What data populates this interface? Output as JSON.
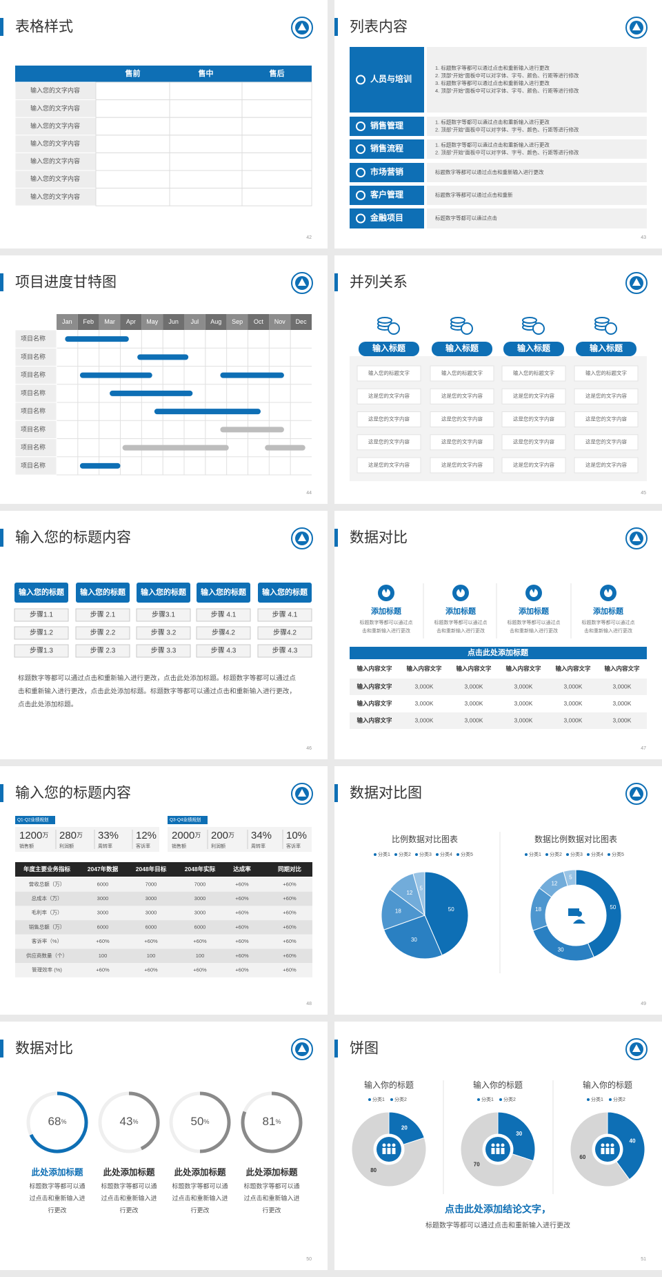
{
  "slides": [
    {
      "title": "表格样式",
      "page": "42",
      "table": {
        "columns": [
          "售前",
          "售中",
          "售后"
        ],
        "rows": [
          "输入您的文字内容",
          "输入您的文字内容",
          "输入您的文字内容",
          "输入您的文字内容",
          "输入您的文字内容",
          "输入您的文字内容",
          "输入您的文字内容"
        ]
      }
    },
    {
      "title": "列表内容",
      "page": "43",
      "list": [
        {
          "label": "人员与培训",
          "lines": [
            "1.  标题数字等都可以通过点击和重新输入进行更改",
            "2.  顶部“开始”面板中可以对字体、字号、颜色、行距等进行修改",
            "3.  标题数字等都可以通过点击和重新输入进行更改",
            "4.  顶部“开始”面板中可以对字体、字号、颜色、行距等进行修改"
          ]
        },
        {
          "label": "销售管理",
          "lines": [
            "1.  标题数字等都可以通过点击和重新输入进行更改",
            "2.  顶部“开始”面板中可以对字体、字号、颜色、行距等进行修改"
          ]
        },
        {
          "label": "销售流程",
          "lines": [
            "1.  标题数字等都可以通过点击和重新输入进行更改",
            "2.  顶部“开始”面板中可以对字体、字号、颜色、行距等进行修改"
          ]
        },
        {
          "label": "市场营销",
          "lines": [
            "标题数字等都可以通过点击和重新输入进行更改"
          ]
        },
        {
          "label": "客户管理",
          "lines": [
            "标题数字等都可以通过点击和重新"
          ]
        },
        {
          "label": "金融项目",
          "lines": [
            "标题数字等都可以通过点击"
          ]
        }
      ]
    },
    {
      "title": "项目进度甘特图",
      "page": "44",
      "gantt": {
        "months": [
          "Jan",
          "Feb",
          "Mar",
          "Apr",
          "May",
          "Jun",
          "Jul",
          "Aug",
          "Sep",
          "Oct",
          "Nov",
          "Dec"
        ],
        "rows": [
          {
            "label": "项目名称",
            "bars": [
              {
                "start": 0.4,
                "end": 3.4,
                "color": "#0e6fb5"
              }
            ]
          },
          {
            "label": "项目名称",
            "bars": [
              {
                "start": 3.8,
                "end": 6.2,
                "color": "#0e6fb5"
              }
            ]
          },
          {
            "label": "项目名称",
            "bars": [
              {
                "start": 1.1,
                "end": 4.5,
                "color": "#0e6fb5"
              },
              {
                "start": 7.7,
                "end": 10.7,
                "color": "#0e6fb5"
              }
            ]
          },
          {
            "label": "项目名称",
            "bars": [
              {
                "start": 2.5,
                "end": 6.4,
                "color": "#0e6fb5"
              }
            ]
          },
          {
            "label": "项目名称",
            "bars": [
              {
                "start": 4.6,
                "end": 9.6,
                "color": "#0e6fb5"
              }
            ]
          },
          {
            "label": "项目名称",
            "bars": [
              {
                "start": 7.7,
                "end": 10.7,
                "color": "#bdbdbd"
              }
            ]
          },
          {
            "label": "项目名称",
            "bars": [
              {
                "start": 3.1,
                "end": 8.1,
                "color": "#bdbdbd"
              },
              {
                "start": 9.8,
                "end": 11.7,
                "color": "#bdbdbd"
              }
            ]
          },
          {
            "label": "项目名称",
            "bars": [
              {
                "start": 1.1,
                "end": 3.0,
                "color": "#0e6fb5"
              }
            ]
          }
        ]
      }
    },
    {
      "title": "并列关系",
      "page": "45",
      "parallel": [
        {
          "title": "输入标题",
          "items": [
            "输入您的标题文字",
            "这是您的文字内容",
            "这是您的文字内容",
            "这是您的文字内容",
            "这是您的文字内容"
          ]
        },
        {
          "title": "输入标题",
          "items": [
            "输入您的标题文字",
            "这是您的文字内容",
            "这是您的文字内容",
            "这是您的文字内容",
            "这是您的文字内容"
          ]
        },
        {
          "title": "输入标题",
          "items": [
            "输入您的标题文字",
            "这是您的文字内容",
            "这是您的文字内容",
            "这是您的文字内容",
            "这是您的文字内容"
          ]
        },
        {
          "title": "输入标题",
          "items": [
            "输入您的标题文字",
            "这是您的文字内容",
            "这是您的文字内容",
            "这是您的文字内容",
            "这是您的文字内容"
          ]
        }
      ]
    },
    {
      "title": "输入您的标题内容",
      "page": "46",
      "steps": {
        "columns": [
          {
            "title": "输入您的标题",
            "steps": [
              "步骤1.1",
              "步骤1.2",
              "步骤1.3"
            ]
          },
          {
            "title": "输入您的标题",
            "steps": [
              "步骤 2.1",
              "步骤 2.2",
              "步骤 2.3"
            ]
          },
          {
            "title": "输入您的标题",
            "steps": [
              "步骤3.1",
              "步骤 3.2",
              "步骤 3.3"
            ]
          },
          {
            "title": "输入您的标题",
            "steps": [
              "步骤 4.1",
              "步骤4.2",
              "步骤 4.3"
            ]
          },
          {
            "title": "输入您的标题",
            "steps": [
              "步骤 4.1",
              "步骤4.2",
              "步骤 4.3"
            ]
          }
        ],
        "paragraph": [
          "标题数字等都可以通过点击和重新输入进行更改，点击此处添加标题。标题数字等都可以通过点",
          "击和重新输入进行更改，点击此处添加标题。标题数字等都可以通过点击和重新输入进行更改，",
          "点击此处添加标题。"
        ]
      }
    },
    {
      "title": "数据对比",
      "page": "47",
      "compare": {
        "items": [
          {
            "title": "添加标题",
            "desc": [
              "标题数字等都可以通过点",
              "击和重新输入进行更改"
            ]
          },
          {
            "title": "添加标题",
            "desc": [
              "标题数字等都可以通过点",
              "击和重新输入进行更改"
            ]
          },
          {
            "title": "添加标题",
            "desc": [
              "标题数字等都可以通过点",
              "击和重新输入进行更改"
            ]
          },
          {
            "title": "添加标题",
            "desc": [
              "标题数字等都可以通过点",
              "击和重新输入进行更改"
            ]
          }
        ],
        "table": {
          "caption": "点击此处添加标题",
          "header": [
            "输入内容文字",
            "输入内容文字",
            "输入内容文字",
            "输入内容文字",
            "输入内容文字",
            "输入内容文字"
          ],
          "rows": [
            [
              "输入内容文字",
              "3,000K",
              "3,000K",
              "3,000K",
              "3,000K",
              "3,000K"
            ],
            [
              "输入内容文字",
              "3,000K",
              "3,000K",
              "3,000K",
              "3,000K",
              "3,000K"
            ],
            [
              "输入内容文字",
              "3,000K",
              "3,000K",
              "3,000K",
              "3,000K",
              "3,000K"
            ]
          ]
        }
      }
    },
    {
      "title": "输入您的标题内容",
      "page": "48",
      "kpi": {
        "groups": [
          {
            "tag": "Q1-Q2业绩规划",
            "items": [
              {
                "value": "1200",
                "unit": "万",
                "label": "销售额"
              },
              {
                "value": "280",
                "unit": "万",
                "label": "利润额"
              },
              {
                "value": "33%",
                "label": "周转率"
              },
              {
                "value": "12%",
                "label": "客诉率"
              }
            ]
          },
          {
            "tag": "Q3-Q4业绩规划",
            "items": [
              {
                "value": "2000",
                "unit": "万",
                "label": "销售额"
              },
              {
                "value": "200",
                "unit": "万",
                "label": "利润额"
              },
              {
                "value": "34%",
                "label": "周转率"
              },
              {
                "value": "10%",
                "label": "客诉率"
              }
            ]
          }
        ],
        "table": {
          "header": [
            "年度主要业务指标",
            "2047年数据",
            "2048年目标",
            "2048年实际",
            "达成率",
            "同期对比"
          ],
          "rows": [
            [
              "营收总额（万）",
              "6000",
              "7000",
              "7000",
              "+60%",
              "+60%"
            ],
            [
              "总成本（万）",
              "3000",
              "3000",
              "3000",
              "+60%",
              "+60%"
            ],
            [
              "毛利率（万）",
              "3000",
              "3000",
              "3000",
              "+60%",
              "+60%"
            ],
            [
              "销售总额（万）",
              "6000",
              "6000",
              "6000",
              "+60%",
              "+60%"
            ],
            [
              "客诉率（%）",
              "+60%",
              "+60%",
              "+60%",
              "+60%",
              "+60%"
            ],
            [
              "供应商数量（个）",
              "100",
              "100",
              "100",
              "+60%",
              "+60%"
            ],
            [
              "管理效率 (%)",
              "+60%",
              "+60%",
              "+60%",
              "+60%",
              "+60%"
            ]
          ]
        }
      }
    },
    {
      "title": "数据对比图",
      "page": "49",
      "charts": [
        {
          "type": "pie",
          "title": "比例数据对比图表",
          "categories": [
            "分类1",
            "分类2",
            "分类3",
            "分类4",
            "分类5"
          ],
          "values": [
            50,
            30,
            18,
            12,
            5
          ],
          "colors": [
            "#0e6fb5",
            "#2a80c2",
            "#4d96cf",
            "#72acda",
            "#98c3e5"
          ]
        },
        {
          "type": "donut",
          "title": "数据比例数据对比图表",
          "categories": [
            "分类1",
            "分类2",
            "分类3",
            "分类4",
            "分类5"
          ],
          "values": [
            50,
            30,
            18,
            12,
            5
          ],
          "colors": [
            "#0e6fb5",
            "#2a80c2",
            "#4d96cf",
            "#72acda",
            "#98c3e5"
          ]
        }
      ]
    },
    {
      "title": "数据对比",
      "page": "50",
      "rings": [
        {
          "value": 68,
          "unit": "%",
          "color": "#0e6fb5",
          "title_color": "#0e6fb5",
          "title": "此处添加标题",
          "desc": [
            "标题数字等都可以通",
            "过点击和重新输入进",
            "行更改"
          ]
        },
        {
          "value": 43,
          "unit": "%",
          "color": "#8a8a8a",
          "title_color": "#333333",
          "title": "此处添加标题",
          "desc": [
            "标题数字等都可以通",
            "过点击和重新输入进",
            "行更改"
          ]
        },
        {
          "value": 50,
          "unit": "%",
          "color": "#8a8a8a",
          "title_color": "#333333",
          "title": "此处添加标题",
          "desc": [
            "标题数字等都可以通",
            "过点击和重新输入进",
            "行更改"
          ]
        },
        {
          "value": 81,
          "unit": "%",
          "color": "#8a8a8a",
          "title_color": "#333333",
          "title": "此处添加标题",
          "desc": [
            "标题数字等都可以通",
            "过点击和重新输入进",
            "行更改"
          ]
        }
      ]
    },
    {
      "title": "饼图",
      "page": "51",
      "donuts": {
        "items": [
          {
            "title": "输入你的标题",
            "categories": [
              "分类1",
              "分类2"
            ],
            "values": [
              20,
              80
            ],
            "colors": [
              "#0e6fb5",
              "#d6d6d6"
            ]
          },
          {
            "title": "输入你的标题",
            "categories": [
              "分类1",
              "分类2"
            ],
            "values": [
              30,
              70
            ],
            "colors": [
              "#0e6fb5",
              "#d6d6d6"
            ]
          },
          {
            "title": "输入你的标题",
            "categories": [
              "分类1",
              "分类2"
            ],
            "values": [
              40,
              60
            ],
            "colors": [
              "#0e6fb5",
              "#d6d6d6"
            ]
          }
        ],
        "conclusion": "点击此处添加结论文字，",
        "note": "标题数字等都可以通过点击和重新输入进行更改"
      }
    }
  ]
}
